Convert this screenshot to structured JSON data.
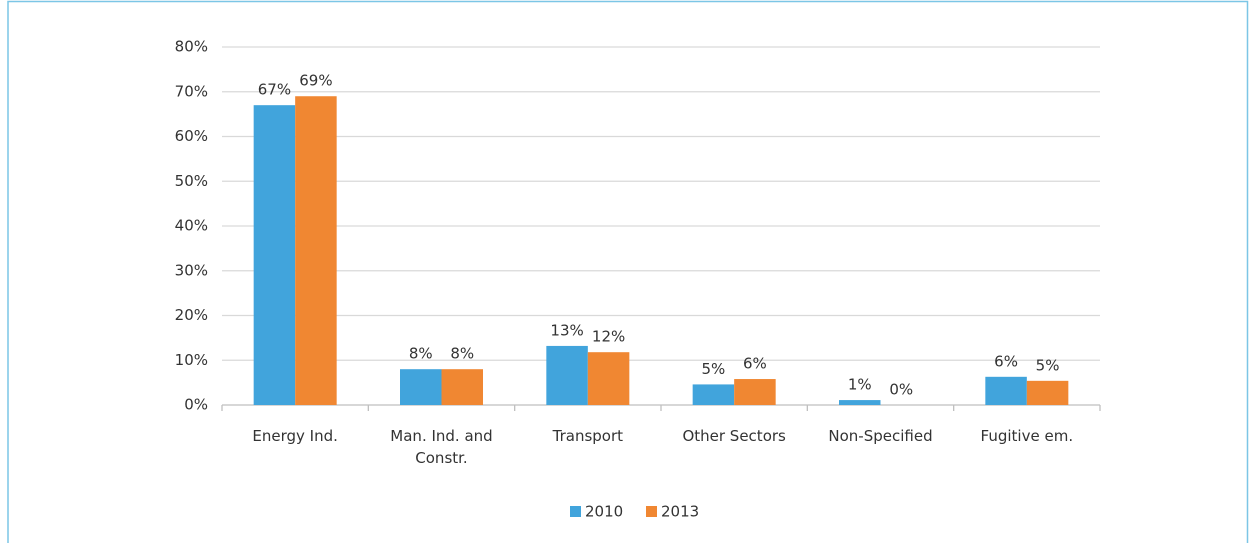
{
  "chart_data": {
    "type": "bar",
    "categories": [
      "Energy Ind.",
      "Man. Ind. and Constr.",
      "Transport",
      "Other Sectors",
      "Non-Specified",
      "Fugitive em."
    ],
    "series": [
      {
        "name": "2010",
        "color": "#41a4dc",
        "values": [
          67,
          8,
          13.2,
          4.6,
          1.1,
          6.3
        ],
        "value_labels": [
          "67%",
          "8%",
          "13%",
          "5%",
          "1%",
          "6%"
        ]
      },
      {
        "name": "2013",
        "color": "#f08732",
        "values": [
          69,
          8,
          11.8,
          5.8,
          0,
          5.4
        ],
        "value_labels": [
          "69%",
          "8%",
          "12%",
          "6%",
          "0%",
          "5%"
        ]
      }
    ],
    "ylim": [
      0,
      80
    ],
    "yticks": [
      {
        "value": 0,
        "label": "0%"
      },
      {
        "value": 10,
        "label": "10%"
      },
      {
        "value": 20,
        "label": "20%"
      },
      {
        "value": 30,
        "label": "30%"
      },
      {
        "value": 40,
        "label": "40%"
      },
      {
        "value": 50,
        "label": "50%"
      },
      {
        "value": 60,
        "label": "60%"
      },
      {
        "value": 70,
        "label": "70%"
      },
      {
        "value": 80,
        "label": "80%"
      }
    ],
    "grid": true,
    "legend": "bottom"
  }
}
